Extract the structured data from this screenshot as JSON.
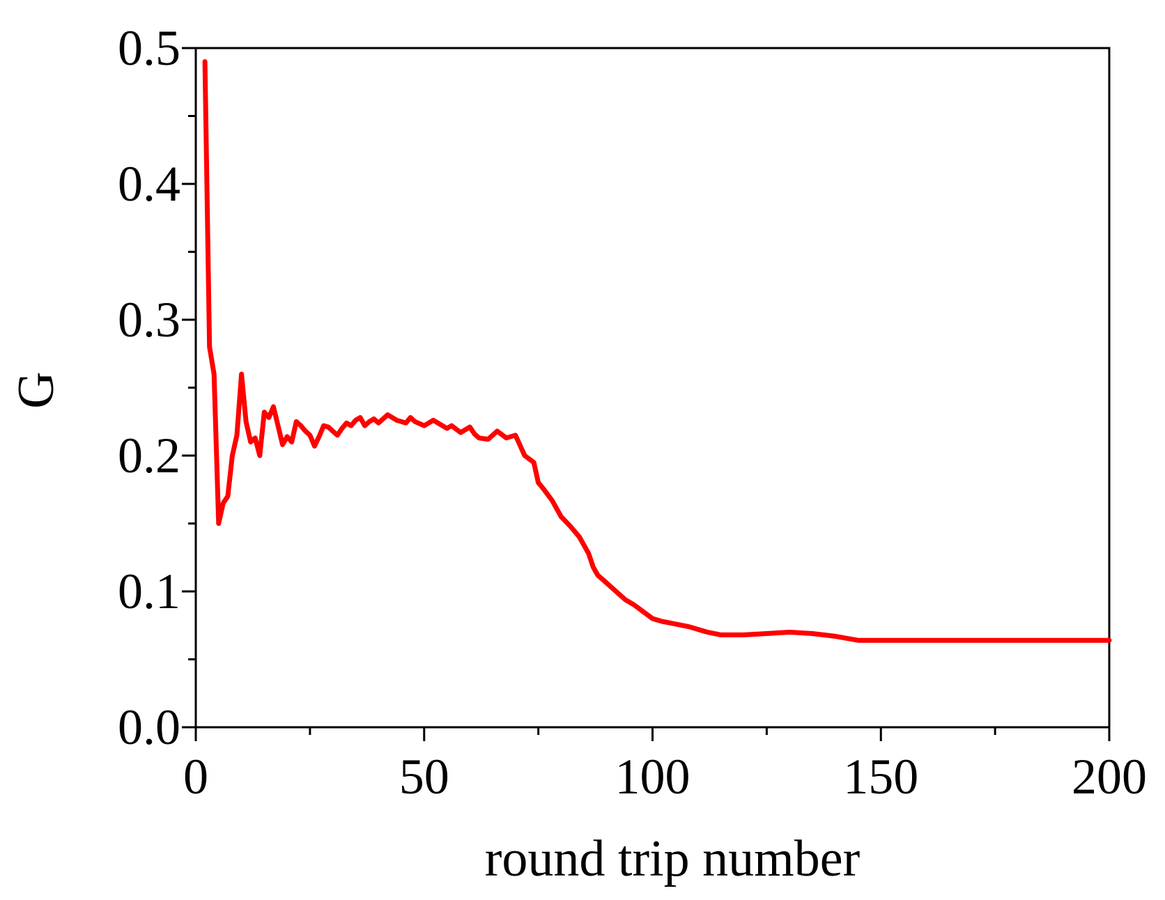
{
  "chart_data": {
    "type": "line",
    "title": "",
    "xlabel": "round trip number",
    "ylabel": "G",
    "xlim": [
      0,
      200
    ],
    "ylim": [
      0.0,
      0.5
    ],
    "x_ticks": [
      0,
      50,
      100,
      150,
      200
    ],
    "x_tick_labels": [
      "0",
      "50",
      "100",
      "150",
      "200"
    ],
    "y_ticks": [
      0.0,
      0.1,
      0.2,
      0.3,
      0.4,
      0.5
    ],
    "y_tick_labels": [
      "0.0",
      "0.1",
      "0.2",
      "0.3",
      "0.4",
      "0.5"
    ],
    "grid": false,
    "legend": "none",
    "series": [
      {
        "color": "#ff0000",
        "x": [
          2,
          3,
          4,
          5,
          6,
          7,
          8,
          9,
          10,
          11,
          12,
          13,
          14,
          15,
          16,
          17,
          18,
          19,
          20,
          21,
          22,
          23,
          24,
          25,
          26,
          27,
          28,
          29,
          30,
          31,
          32,
          33,
          34,
          35,
          36,
          37,
          38,
          39,
          40,
          42,
          44,
          46,
          47,
          48,
          50,
          52,
          54,
          55,
          56,
          58,
          60,
          61,
          62,
          64,
          66,
          68,
          70,
          72,
          74,
          75,
          76,
          78,
          80,
          82,
          84,
          86,
          87,
          88,
          90,
          92,
          94,
          96,
          98,
          100,
          102,
          105,
          108,
          110,
          112,
          115,
          118,
          120,
          125,
          130,
          135,
          140,
          145,
          150,
          155,
          160,
          165,
          170,
          175,
          180,
          185,
          190,
          195,
          198,
          200
        ],
        "y": [
          0.49,
          0.28,
          0.26,
          0.15,
          0.165,
          0.17,
          0.2,
          0.215,
          0.26,
          0.225,
          0.21,
          0.213,
          0.2,
          0.232,
          0.228,
          0.236,
          0.222,
          0.208,
          0.214,
          0.21,
          0.225,
          0.222,
          0.218,
          0.215,
          0.207,
          0.214,
          0.222,
          0.221,
          0.218,
          0.215,
          0.22,
          0.224,
          0.222,
          0.226,
          0.228,
          0.222,
          0.225,
          0.227,
          0.224,
          0.23,
          0.226,
          0.224,
          0.228,
          0.225,
          0.222,
          0.226,
          0.222,
          0.22,
          0.222,
          0.217,
          0.221,
          0.216,
          0.213,
          0.212,
          0.218,
          0.213,
          0.215,
          0.2,
          0.195,
          0.18,
          0.176,
          0.167,
          0.155,
          0.148,
          0.14,
          0.128,
          0.118,
          0.112,
          0.106,
          0.1,
          0.094,
          0.09,
          0.085,
          0.08,
          0.078,
          0.076,
          0.074,
          0.072,
          0.07,
          0.068,
          0.068,
          0.068,
          0.069,
          0.07,
          0.069,
          0.067,
          0.064,
          0.064,
          0.064,
          0.064,
          0.064,
          0.064,
          0.064,
          0.064,
          0.064,
          0.064,
          0.064,
          0.064,
          0.064
        ]
      }
    ]
  }
}
